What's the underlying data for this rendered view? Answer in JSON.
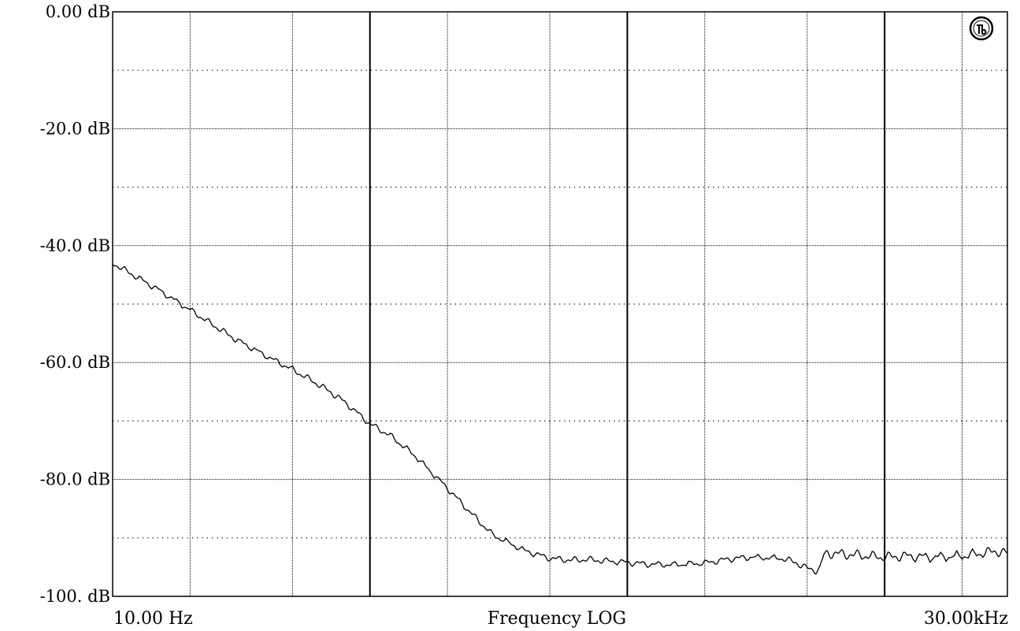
{
  "chart_data": {
    "type": "line",
    "title": "",
    "xlabel": "Frequency LOG",
    "ylabel": "",
    "x_scale": "log",
    "xlim": [
      10,
      30000
    ],
    "ylim": [
      -100,
      0
    ],
    "grid": true,
    "x_tick_labels": {
      "left": "10.00 Hz",
      "right": "30.00kHz"
    },
    "y_tick_labels": [
      "0.00 dB",
      "-20.0 dB",
      "-40.0 dB",
      "-60.0 dB",
      "-80.0 dB",
      "-100. dB"
    ],
    "y_tick_values": [
      0,
      -20,
      -40,
      -60,
      -80,
      -100
    ],
    "x_grid_values": [
      20,
      50,
      100,
      200,
      500,
      1000,
      2000,
      5000,
      10000,
      20000
    ],
    "x_grid_heavy": [
      100,
      1000,
      10000
    ],
    "y_minor_dotted": [
      -10,
      -30,
      -50,
      -70,
      -90
    ],
    "logo_icon": "audio-precision-logo-icon",
    "series": [
      {
        "x": [
          10,
          12,
          15,
          20,
          25,
          30,
          40,
          50,
          60,
          70,
          80,
          100,
          120,
          150,
          200,
          250,
          300,
          400,
          500,
          600,
          700,
          800,
          1000,
          1200,
          1500,
          2000,
          2500,
          3000,
          4000,
          4500,
          5000,
          5400,
          5600,
          5800,
          6000,
          7000,
          8000,
          10000,
          12000,
          15000,
          20000,
          25000,
          28000,
          30000
        ],
        "y": [
          -43,
          -45,
          -47.5,
          -51,
          -53.8,
          -56,
          -59,
          -61.2,
          -63.2,
          -65,
          -66.8,
          -70.5,
          -72.5,
          -76,
          -81.5,
          -86,
          -89.5,
          -92.2,
          -93.5,
          -93.8,
          -93.7,
          -93.9,
          -94.2,
          -94.5,
          -94.6,
          -94.3,
          -93.6,
          -93.3,
          -93.5,
          -94.2,
          -95.2,
          -95.6,
          -95.2,
          -93,
          -92.6,
          -92.8,
          -93,
          -93.3,
          -93.1,
          -93.3,
          -93.1,
          -92.5,
          -92.3,
          -92.7
        ]
      }
    ]
  }
}
